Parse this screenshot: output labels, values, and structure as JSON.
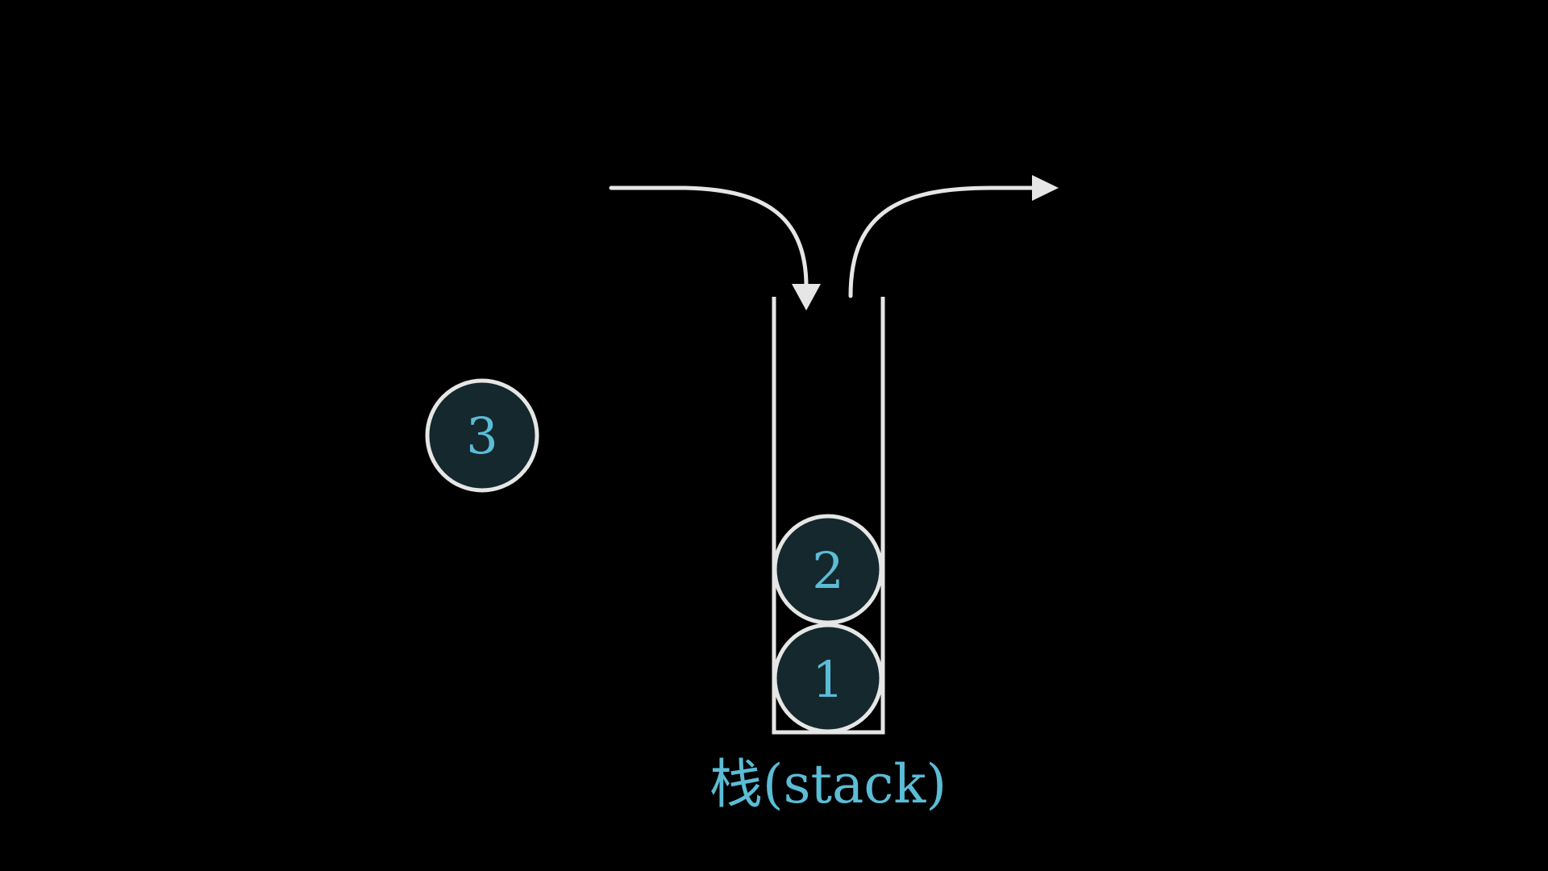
{
  "colors": {
    "background": "#000000",
    "stroke": "#e6e6e6",
    "ball_fill": "#14282d",
    "text": "#5bbcd6"
  },
  "icons": {
    "push_arrow": "curved-arrow-down-icon",
    "pop_arrow": "curved-arrow-right-icon"
  },
  "balls": {
    "outside": {
      "label": "3"
    },
    "stack_top": {
      "label": "2"
    },
    "stack_bottom": {
      "label": "1"
    }
  },
  "stack": {
    "label": "栈(stack)"
  }
}
